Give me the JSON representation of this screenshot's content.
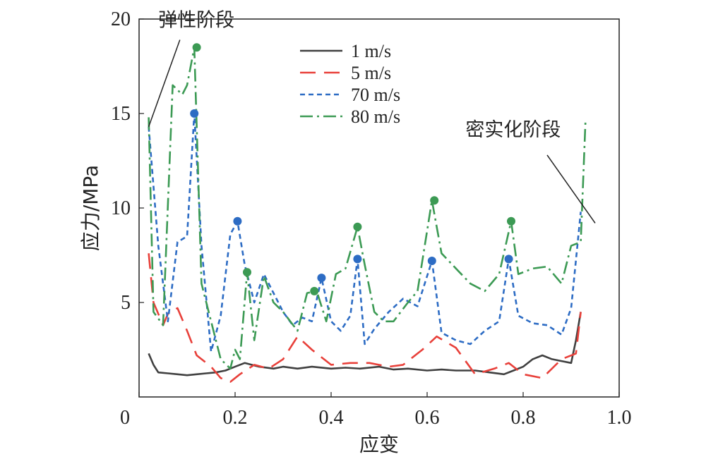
{
  "chart_data": {
    "type": "line",
    "xlabel": "应变",
    "ylabel": "应力/MPa",
    "xlim": [
      0,
      1.0
    ],
    "ylim": [
      0,
      20
    ],
    "x_ticks": [
      0,
      0.2,
      0.4,
      0.6,
      0.8,
      1.0
    ],
    "x_tick_labels": [
      "0",
      "0.2",
      "0.4",
      "0.6",
      "0.8",
      "1.0"
    ],
    "y_ticks": [
      5,
      10,
      15,
      20
    ],
    "y_tick_labels": [
      "5",
      "10",
      "15",
      "20"
    ],
    "grid": false,
    "legend_position": "top-center",
    "series": [
      {
        "name": "1 m/s",
        "color": "#404040",
        "dash": "solid",
        "x": [
          0.02,
          0.03,
          0.04,
          0.06,
          0.08,
          0.1,
          0.12,
          0.14,
          0.16,
          0.18,
          0.2,
          0.22,
          0.25,
          0.28,
          0.3,
          0.33,
          0.36,
          0.4,
          0.43,
          0.46,
          0.5,
          0.53,
          0.56,
          0.6,
          0.63,
          0.66,
          0.7,
          0.73,
          0.76,
          0.78,
          0.8,
          0.82,
          0.84,
          0.86,
          0.88,
          0.9,
          0.91,
          0.92
        ],
        "y": [
          2.3,
          1.7,
          1.3,
          1.25,
          1.2,
          1.15,
          1.2,
          1.25,
          1.3,
          1.4,
          1.6,
          1.8,
          1.6,
          1.5,
          1.6,
          1.5,
          1.6,
          1.5,
          1.55,
          1.5,
          1.6,
          1.45,
          1.5,
          1.4,
          1.45,
          1.4,
          1.4,
          1.3,
          1.2,
          1.4,
          1.6,
          2.0,
          2.2,
          2.0,
          1.9,
          1.8,
          3.0,
          4.5
        ]
      },
      {
        "name": "5 m/s",
        "color": "#e8403a",
        "dash": "long",
        "x": [
          0.02,
          0.03,
          0.05,
          0.06,
          0.08,
          0.1,
          0.12,
          0.15,
          0.17,
          0.19,
          0.21,
          0.24,
          0.27,
          0.3,
          0.33,
          0.36,
          0.4,
          0.44,
          0.48,
          0.52,
          0.55,
          0.59,
          0.62,
          0.66,
          0.7,
          0.74,
          0.77,
          0.8,
          0.84,
          0.88,
          0.91,
          0.92
        ],
        "y": [
          7.6,
          5.0,
          3.8,
          4.4,
          4.7,
          3.5,
          2.2,
          1.6,
          1.0,
          0.8,
          1.2,
          1.7,
          1.5,
          2.0,
          3.2,
          2.5,
          1.7,
          1.8,
          1.8,
          1.6,
          1.7,
          2.5,
          3.2,
          2.6,
          1.2,
          1.5,
          1.8,
          1.2,
          1.0,
          2.0,
          2.3,
          4.5
        ]
      },
      {
        "name": "70 m/s",
        "color": "#2d6cc4",
        "dash": "short",
        "x": [
          0.02,
          0.04,
          0.06,
          0.08,
          0.1,
          0.115,
          0.13,
          0.15,
          0.17,
          0.19,
          0.205,
          0.22,
          0.24,
          0.26,
          0.28,
          0.3,
          0.32,
          0.34,
          0.36,
          0.38,
          0.4,
          0.42,
          0.44,
          0.455,
          0.47,
          0.49,
          0.52,
          0.55,
          0.58,
          0.61,
          0.63,
          0.66,
          0.69,
          0.72,
          0.75,
          0.77,
          0.79,
          0.82,
          0.85,
          0.88,
          0.9,
          0.92
        ],
        "y": [
          14.3,
          8.0,
          4.0,
          8.2,
          8.5,
          15.0,
          8.0,
          2.4,
          4.3,
          8.6,
          9.3,
          7.0,
          5.0,
          6.5,
          5.5,
          4.5,
          3.8,
          4.2,
          4.0,
          6.3,
          4.0,
          3.5,
          4.3,
          7.3,
          2.8,
          3.6,
          4.5,
          5.2,
          4.8,
          7.2,
          3.4,
          3.0,
          2.8,
          3.5,
          4.0,
          7.3,
          4.3,
          3.9,
          3.8,
          3.3,
          4.7,
          9.8
        ]
      },
      {
        "name": "80 m/s",
        "color": "#3c9a54",
        "dash": "dashdot",
        "x": [
          0.02,
          0.03,
          0.05,
          0.07,
          0.09,
          0.1,
          0.115,
          0.13,
          0.15,
          0.17,
          0.19,
          0.2,
          0.21,
          0.225,
          0.24,
          0.26,
          0.28,
          0.3,
          0.33,
          0.35,
          0.37,
          0.39,
          0.41,
          0.43,
          0.455,
          0.47,
          0.49,
          0.51,
          0.53,
          0.56,
          0.58,
          0.61,
          0.63,
          0.66,
          0.69,
          0.72,
          0.75,
          0.775,
          0.79,
          0.82,
          0.85,
          0.88,
          0.9,
          0.92,
          0.93
        ],
        "y": [
          14.8,
          4.5,
          3.8,
          16.5,
          16.0,
          16.5,
          18.5,
          6.0,
          4.0,
          2.0,
          1.5,
          2.5,
          2.0,
          6.6,
          3.0,
          6.4,
          5.0,
          4.5,
          3.5,
          5.5,
          5.6,
          4.0,
          6.5,
          6.8,
          9.0,
          7.0,
          4.5,
          4.0,
          4.0,
          5.0,
          5.6,
          10.4,
          7.6,
          6.8,
          6.0,
          5.6,
          6.5,
          9.3,
          6.5,
          6.8,
          6.9,
          6.0,
          8.0,
          8.2,
          14.7
        ]
      }
    ],
    "markers": [
      {
        "series": "70 m/s",
        "color": "#2d6cc4",
        "x": [
          0.115,
          0.205,
          0.38,
          0.455,
          0.61,
          0.77
        ],
        "y": [
          15.0,
          9.3,
          6.3,
          7.3,
          7.2,
          7.3
        ]
      },
      {
        "series": "80 m/s",
        "color": "#3c9a54",
        "x": [
          0.12,
          0.225,
          0.365,
          0.455,
          0.615,
          0.775
        ],
        "y": [
          18.5,
          6.6,
          5.6,
          9.0,
          10.4,
          9.3
        ]
      }
    ],
    "annotations": [
      {
        "text": "弹性阶段",
        "label_pos": [
          0.04,
          19.6
        ],
        "line_from": [
          0.085,
          18.9
        ],
        "line_to": [
          0.02,
          14.3
        ]
      },
      {
        "text": "密实化阶段",
        "label_pos": [
          0.68,
          13.8
        ],
        "line_from": [
          0.85,
          12.8
        ],
        "line_to": [
          0.95,
          9.2
        ]
      }
    ]
  }
}
